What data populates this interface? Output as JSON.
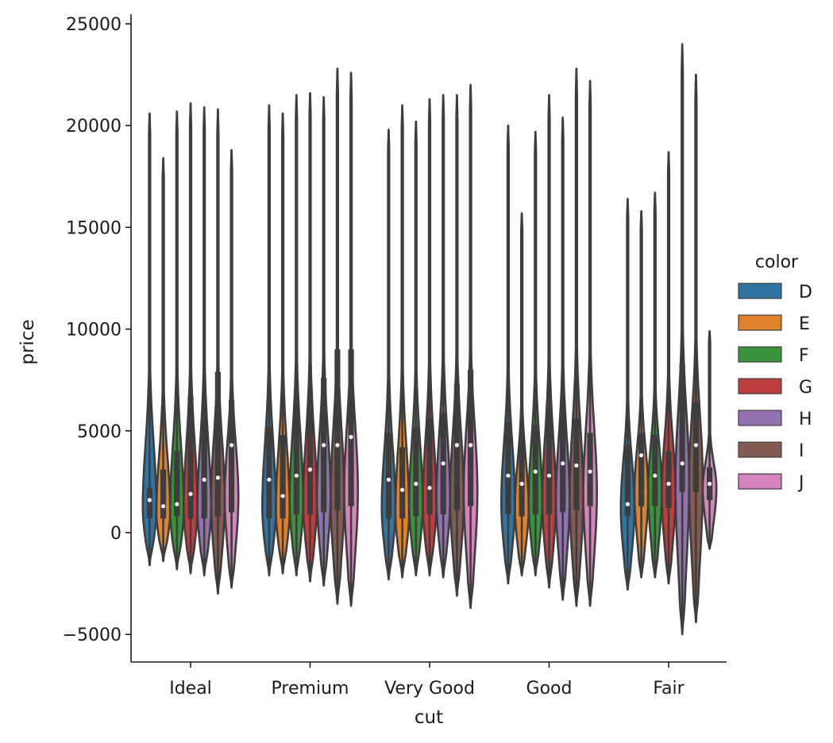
{
  "chart_data": {
    "type": "violin",
    "xlabel": "cut",
    "ylabel": "price",
    "ylim": [
      -6500,
      25500
    ],
    "yticks": [
      -5000,
      0,
      5000,
      10000,
      15000,
      20000,
      25000
    ],
    "ytick_labels": [
      "−5000",
      "0",
      "5000",
      "10000",
      "15000",
      "20000",
      "25000"
    ],
    "categories": [
      "Ideal",
      "Premium",
      "Very Good",
      "Good",
      "Fair"
    ],
    "legend": {
      "title": "color",
      "placement": "right",
      "entries": [
        "D",
        "E",
        "F",
        "G",
        "H",
        "I",
        "J"
      ]
    },
    "series_colors": {
      "D": "#3274a1",
      "E": "#e1812c",
      "F": "#3a923a",
      "G": "#c03d3e",
      "H": "#9372b2",
      "I": "#845b53",
      "J": "#d684bd"
    },
    "violin_color": "#3d3d3d",
    "series": [
      {
        "cut": "Ideal",
        "color": "D",
        "min": -1600,
        "max": 20600,
        "q1": 700,
        "median": 1600,
        "q3": 2200,
        "mode": 1200
      },
      {
        "cut": "Ideal",
        "color": "E",
        "min": -1400,
        "max": 18400,
        "q1": 700,
        "median": 1300,
        "q3": 3100,
        "mode": 1000
      },
      {
        "cut": "Ideal",
        "color": "F",
        "min": -1800,
        "max": 20700,
        "q1": 800,
        "median": 1400,
        "q3": 4000,
        "mode": 1100
      },
      {
        "cut": "Ideal",
        "color": "G",
        "min": -2000,
        "max": 21100,
        "q1": 700,
        "median": 1900,
        "q3": 6700,
        "mode": 1200
      },
      {
        "cut": "Ideal",
        "color": "H",
        "min": -2100,
        "max": 20900,
        "q1": 700,
        "median": 2600,
        "q3": 6100,
        "mode": 1200
      },
      {
        "cut": "Ideal",
        "color": "I",
        "min": -3000,
        "max": 20800,
        "q1": 800,
        "median": 2700,
        "q3": 7900,
        "mode": 1500
      },
      {
        "cut": "Ideal",
        "color": "J",
        "min": -2700,
        "max": 18800,
        "q1": 1000,
        "median": 4300,
        "q3": 6500,
        "mode": 1700
      },
      {
        "cut": "Premium",
        "color": "D",
        "min": -2100,
        "max": 21000,
        "q1": 700,
        "median": 2600,
        "q3": 5200,
        "mode": 1200
      },
      {
        "cut": "Premium",
        "color": "E",
        "min": -2000,
        "max": 20600,
        "q1": 700,
        "median": 1800,
        "q3": 4800,
        "mode": 1100
      },
      {
        "cut": "Premium",
        "color": "F",
        "min": -2100,
        "max": 21500,
        "q1": 900,
        "median": 2800,
        "q3": 6500,
        "mode": 1500
      },
      {
        "cut": "Premium",
        "color": "G",
        "min": -2400,
        "max": 21600,
        "q1": 900,
        "median": 3100,
        "q3": 6900,
        "mode": 1500
      },
      {
        "cut": "Premium",
        "color": "H",
        "min": -2600,
        "max": 21400,
        "q1": 1000,
        "median": 4300,
        "q3": 7600,
        "mode": 1800
      },
      {
        "cut": "Premium",
        "color": "I",
        "min": -3500,
        "max": 22800,
        "q1": 1100,
        "median": 4300,
        "q3": 9000,
        "mode": 1700
      },
      {
        "cut": "Premium",
        "color": "J",
        "min": -3600,
        "max": 22600,
        "q1": 1300,
        "median": 4700,
        "q3": 9000,
        "mode": 2000
      },
      {
        "cut": "Very Good",
        "color": "D",
        "min": -2300,
        "max": 19800,
        "q1": 700,
        "median": 2600,
        "q3": 4900,
        "mode": 1200
      },
      {
        "cut": "Very Good",
        "color": "E",
        "min": -2200,
        "max": 21000,
        "q1": 700,
        "median": 2100,
        "q3": 4200,
        "mode": 1000
      },
      {
        "cut": "Very Good",
        "color": "F",
        "min": -2100,
        "max": 20200,
        "q1": 800,
        "median": 2400,
        "q3": 5200,
        "mode": 1400
      },
      {
        "cut": "Very Good",
        "color": "G",
        "min": -2100,
        "max": 21300,
        "q1": 900,
        "median": 2200,
        "q3": 5600,
        "mode": 1400
      },
      {
        "cut": "Very Good",
        "color": "H",
        "min": -2200,
        "max": 21500,
        "q1": 900,
        "median": 3400,
        "q3": 5900,
        "mode": 1600
      },
      {
        "cut": "Very Good",
        "color": "I",
        "min": -3100,
        "max": 21500,
        "q1": 1100,
        "median": 4300,
        "q3": 7300,
        "mode": 1700
      },
      {
        "cut": "Very Good",
        "color": "J",
        "min": -3700,
        "max": 22000,
        "q1": 1300,
        "median": 4300,
        "q3": 8000,
        "mode": 2000
      },
      {
        "cut": "Good",
        "color": "D",
        "min": -2500,
        "max": 20000,
        "q1": 900,
        "median": 2800,
        "q3": 5400,
        "mode": 1400
      },
      {
        "cut": "Good",
        "color": "E",
        "min": -2100,
        "max": 15700,
        "q1": 800,
        "median": 2400,
        "q3": 5000,
        "mode": 1200
      },
      {
        "cut": "Good",
        "color": "F",
        "min": -2100,
        "max": 19700,
        "q1": 900,
        "median": 3000,
        "q3": 5300,
        "mode": 1500
      },
      {
        "cut": "Good",
        "color": "G",
        "min": -2700,
        "max": 21500,
        "q1": 900,
        "median": 2800,
        "q3": 6000,
        "mode": 1500
      },
      {
        "cut": "Good",
        "color": "H",
        "min": -3300,
        "max": 20400,
        "q1": 1000,
        "median": 3400,
        "q3": 6400,
        "mode": 1600
      },
      {
        "cut": "Good",
        "color": "I",
        "min": -3600,
        "max": 22800,
        "q1": 1100,
        "median": 3300,
        "q3": 5600,
        "mode": 1700
      },
      {
        "cut": "Good",
        "color": "J",
        "min": -3600,
        "max": 22200,
        "q1": 1300,
        "median": 3000,
        "q3": 4900,
        "mode": 1900
      },
      {
        "cut": "Fair",
        "color": "D",
        "min": -2800,
        "max": 16400,
        "q1": 800,
        "median": 1400,
        "q3": 4300,
        "mode": 1200
      },
      {
        "cut": "Fair",
        "color": "E",
        "min": -2200,
        "max": 15800,
        "q1": 1300,
        "median": 3800,
        "q3": 4900,
        "mode": 2000
      },
      {
        "cut": "Fair",
        "color": "F",
        "min": -2200,
        "max": 16700,
        "q1": 1300,
        "median": 2800,
        "q3": 4800,
        "mode": 2000
      },
      {
        "cut": "Fair",
        "color": "G",
        "min": -2500,
        "max": 18700,
        "q1": 1200,
        "median": 2400,
        "q3": 4000,
        "mode": 1900
      },
      {
        "cut": "Fair",
        "color": "H",
        "min": -5000,
        "max": 24000,
        "q1": 2000,
        "median": 3400,
        "q3": 8300,
        "mode": 2500
      },
      {
        "cut": "Fair",
        "color": "I",
        "min": -4400,
        "max": 22500,
        "q1": 2000,
        "median": 4300,
        "q3": 6400,
        "mode": 2500
      },
      {
        "cut": "Fair",
        "color": "J",
        "min": -800,
        "max": 9900,
        "q1": 1600,
        "median": 2400,
        "q3": 3200,
        "mode": 2200
      }
    ]
  }
}
